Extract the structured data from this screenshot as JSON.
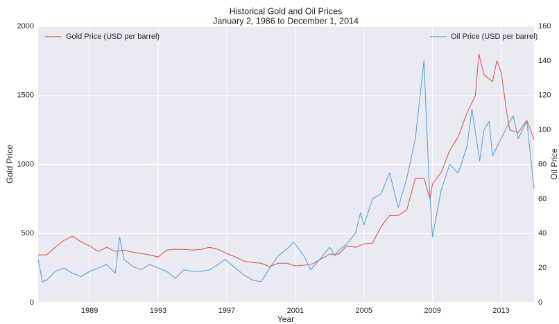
{
  "chart_data": {
    "type": "line",
    "title": "Historical Gold and Oil Prices",
    "subtitle": "January 2, 1986 to December 1, 2014",
    "xlabel": "Year",
    "ylabel": "Gold Price",
    "y2label": "Oil Price",
    "xlim": [
      1986.0,
      2014.92
    ],
    "xticks": [
      1989,
      1993,
      1997,
      2001,
      2005,
      2009,
      2013
    ],
    "ylim": [
      0,
      2000
    ],
    "yticks": [
      0,
      500,
      1000,
      1500,
      2000
    ],
    "y2lim": [
      0,
      160
    ],
    "y2ticks": [
      0,
      20,
      40,
      60,
      80,
      100,
      120,
      140,
      160
    ],
    "grid": true,
    "series": [
      {
        "name": "Gold Price (USD per barrel)",
        "color": "#dd5b4d",
        "legend": "upper left",
        "x": [
          1986.0,
          1986.5,
          1987.0,
          1987.5,
          1988.0,
          1988.5,
          1989.0,
          1989.5,
          1990.0,
          1990.5,
          1991.0,
          1991.5,
          1992.0,
          1992.5,
          1993.0,
          1993.5,
          1994.0,
          1994.5,
          1995.0,
          1995.5,
          1996.0,
          1996.5,
          1997.0,
          1997.5,
          1998.0,
          1998.5,
          1999.0,
          1999.5,
          2000.0,
          2000.5,
          2001.0,
          2001.5,
          2002.0,
          2002.5,
          2003.0,
          2003.5,
          2004.0,
          2004.5,
          2005.0,
          2005.5,
          2006.0,
          2006.5,
          2007.0,
          2007.5,
          2008.0,
          2008.5,
          2008.85,
          2009.0,
          2009.5,
          2010.0,
          2010.5,
          2011.0,
          2011.5,
          2011.7,
          2012.0,
          2012.5,
          2012.75,
          2013.0,
          2013.3,
          2013.5,
          2014.0,
          2014.5,
          2014.92
        ],
        "values": [
          345,
          345,
          400,
          450,
          480,
          440,
          410,
          370,
          400,
          370,
          380,
          365,
          355,
          345,
          330,
          380,
          385,
          385,
          380,
          385,
          400,
          385,
          355,
          330,
          300,
          290,
          285,
          260,
          285,
          285,
          265,
          270,
          280,
          315,
          350,
          350,
          410,
          400,
          425,
          430,
          550,
          630,
          630,
          670,
          900,
          900,
          750,
          860,
          940,
          1100,
          1200,
          1370,
          1500,
          1800,
          1650,
          1600,
          1750,
          1670,
          1400,
          1250,
          1230,
          1320,
          1180
        ]
      },
      {
        "name": "Oil Price (USD per barrel)",
        "color": "#5ba6d9",
        "legend": "upper right",
        "axis": "y2",
        "x": [
          1986.0,
          1986.25,
          1986.5,
          1987.0,
          1987.5,
          1988.0,
          1988.5,
          1989.0,
          1989.5,
          1990.0,
          1990.5,
          1990.75,
          1991.0,
          1991.5,
          1992.0,
          1992.5,
          1993.0,
          1993.5,
          1994.0,
          1994.5,
          1995.0,
          1995.5,
          1996.0,
          1996.5,
          1996.9,
          1997.5,
          1998.0,
          1998.5,
          1999.0,
          1999.5,
          2000.0,
          2000.5,
          2000.9,
          2001.5,
          2001.9,
          2002.5,
          2003.0,
          2003.3,
          2003.5,
          2004.0,
          2004.5,
          2004.8,
          2005.0,
          2005.5,
          2006.0,
          2006.5,
          2007.0,
          2007.5,
          2008.0,
          2008.5,
          2008.8,
          2009.0,
          2009.5,
          2010.0,
          2010.5,
          2011.0,
          2011.3,
          2011.75,
          2012.0,
          2012.3,
          2012.5,
          2013.0,
          2013.5,
          2013.7,
          2014.0,
          2014.5,
          2014.92
        ],
        "values": [
          25,
          12,
          13,
          18,
          20,
          17,
          15,
          18,
          20,
          22,
          17,
          38,
          25,
          21,
          19,
          22,
          20,
          18,
          14,
          19,
          18,
          18,
          19,
          22,
          25,
          20,
          16,
          13,
          12,
          20,
          27,
          31,
          35,
          27,
          19,
          26,
          32,
          27,
          30,
          34,
          40,
          52,
          45,
          60,
          63,
          75,
          55,
          72,
          95,
          140,
          70,
          38,
          65,
          80,
          75,
          90,
          112,
          82,
          100,
          105,
          85,
          95,
          105,
          108,
          95,
          105,
          66
        ]
      }
    ]
  }
}
